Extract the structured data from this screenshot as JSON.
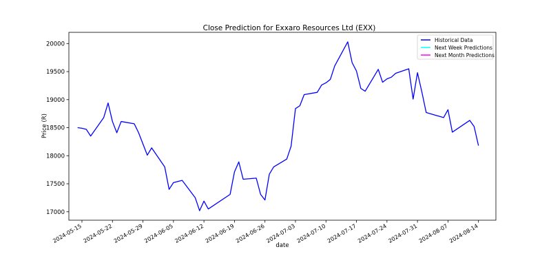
{
  "chart_data": {
    "type": "line",
    "title": "Close Prediction for Exxaro Resources Ltd (EXX)",
    "xlabel": "date",
    "ylabel": "Price (R)",
    "xlim": [
      "2024-05-12",
      "2024-08-18"
    ],
    "ylim": [
      16850,
      20200
    ],
    "x_ticks": [
      "2024-05-15",
      "2024-05-22",
      "2024-05-29",
      "2024-06-05",
      "2024-06-12",
      "2024-06-19",
      "2024-06-26",
      "2024-07-03",
      "2024-07-10",
      "2024-07-17",
      "2024-07-24",
      "2024-07-31",
      "2024-08-07",
      "2024-08-14"
    ],
    "y_ticks": [
      17000,
      17500,
      18000,
      18500,
      19000,
      19500,
      20000
    ],
    "grid": false,
    "legend_position": "top-right",
    "series": [
      {
        "name": "Historical Data",
        "color": "#0000ff",
        "points": [
          [
            "2024-05-14",
            18500
          ],
          [
            "2024-05-15",
            18490
          ],
          [
            "2024-05-16",
            18470
          ],
          [
            "2024-05-17",
            18350
          ],
          [
            "2024-05-20",
            18680
          ],
          [
            "2024-05-21",
            18940
          ],
          [
            "2024-05-22",
            18610
          ],
          [
            "2024-05-23",
            18410
          ],
          [
            "2024-05-24",
            18610
          ],
          [
            "2024-05-27",
            18570
          ],
          [
            "2024-05-28",
            18410
          ],
          [
            "2024-05-30",
            18010
          ],
          [
            "2024-05-31",
            18140
          ],
          [
            "2024-06-03",
            17800
          ],
          [
            "2024-06-04",
            17400
          ],
          [
            "2024-06-05",
            17520
          ],
          [
            "2024-06-07",
            17560
          ],
          [
            "2024-06-10",
            17250
          ],
          [
            "2024-06-11",
            17020
          ],
          [
            "2024-06-12",
            17190
          ],
          [
            "2024-06-13",
            17050
          ],
          [
            "2024-06-18",
            17310
          ],
          [
            "2024-06-19",
            17710
          ],
          [
            "2024-06-20",
            17890
          ],
          [
            "2024-06-21",
            17580
          ],
          [
            "2024-06-24",
            17600
          ],
          [
            "2024-06-25",
            17310
          ],
          [
            "2024-06-26",
            17210
          ],
          [
            "2024-06-27",
            17670
          ],
          [
            "2024-06-28",
            17800
          ],
          [
            "2024-07-01",
            17940
          ],
          [
            "2024-07-02",
            18170
          ],
          [
            "2024-07-03",
            18840
          ],
          [
            "2024-07-04",
            18890
          ],
          [
            "2024-07-05",
            19090
          ],
          [
            "2024-07-08",
            19130
          ],
          [
            "2024-07-09",
            19260
          ],
          [
            "2024-07-10",
            19300
          ],
          [
            "2024-07-11",
            19360
          ],
          [
            "2024-07-12",
            19600
          ],
          [
            "2024-07-15",
            20030
          ],
          [
            "2024-07-16",
            19660
          ],
          [
            "2024-07-17",
            19510
          ],
          [
            "2024-07-18",
            19200
          ],
          [
            "2024-07-19",
            19150
          ],
          [
            "2024-07-22",
            19540
          ],
          [
            "2024-07-23",
            19310
          ],
          [
            "2024-07-24",
            19370
          ],
          [
            "2024-07-25",
            19400
          ],
          [
            "2024-07-26",
            19470
          ],
          [
            "2024-07-29",
            19550
          ],
          [
            "2024-07-30",
            19010
          ],
          [
            "2024-07-31",
            19480
          ],
          [
            "2024-08-01",
            19140
          ],
          [
            "2024-08-02",
            18770
          ],
          [
            "2024-08-06",
            18680
          ],
          [
            "2024-08-07",
            18820
          ],
          [
            "2024-08-08",
            18420
          ],
          [
            "2024-08-12",
            18630
          ],
          [
            "2024-08-13",
            18520
          ],
          [
            "2024-08-14",
            18180
          ]
        ]
      },
      {
        "name": "Next Week Predictions",
        "color": "#00ffff",
        "points": []
      },
      {
        "name": "Next Month Predictions",
        "color": "#ff00ff",
        "points": []
      }
    ]
  }
}
